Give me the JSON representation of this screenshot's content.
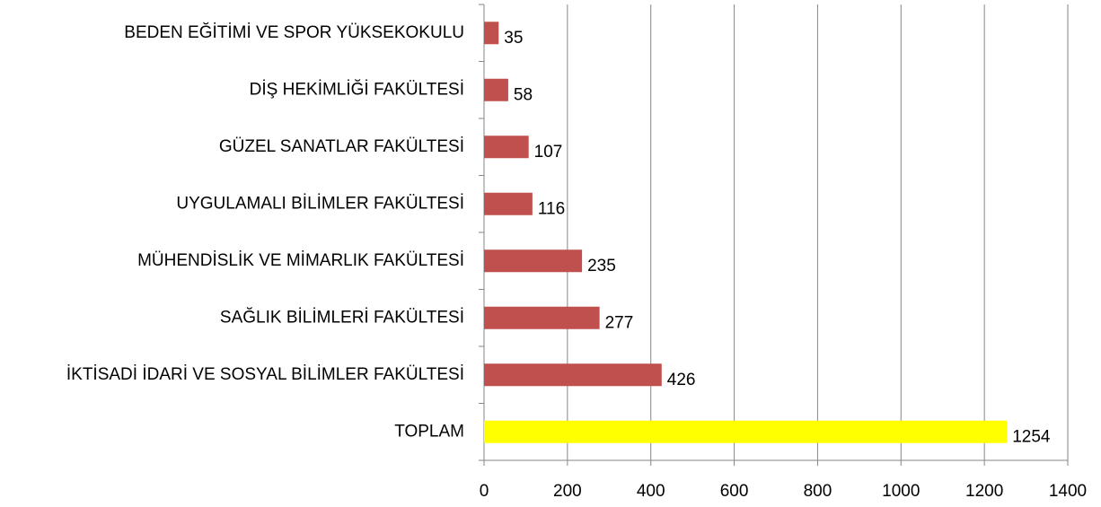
{
  "chart_data": {
    "type": "hbar",
    "categories": [
      "BEDEN EĞİTİMİ VE SPOR YÜKSEKOKULU",
      "DİŞ HEKİMLİĞİ FAKÜLTESİ",
      "GÜZEL SANATLAR FAKÜLTESİ",
      "UYGULAMALI BİLİMLER FAKÜLTESİ",
      "MÜHENDİSLİK VE MİMARLIK FAKÜLTESİ",
      "SAĞLIK BİLİMLERİ FAKÜLTESİ",
      "İKTİSADİ İDARİ VE SOSYAL BİLİMLER FAKÜLTESİ",
      "TOPLAM"
    ],
    "values": [
      35,
      58,
      107,
      116,
      235,
      277,
      426,
      1254
    ],
    "colors": [
      "#c0504d",
      "#c0504d",
      "#c0504d",
      "#c0504d",
      "#c0504d",
      "#c0504d",
      "#c0504d",
      "#ffff00"
    ],
    "xlim": [
      0,
      1400
    ],
    "xticks": [
      0,
      200,
      400,
      600,
      800,
      1000,
      1200,
      1400
    ],
    "grid": true
  }
}
